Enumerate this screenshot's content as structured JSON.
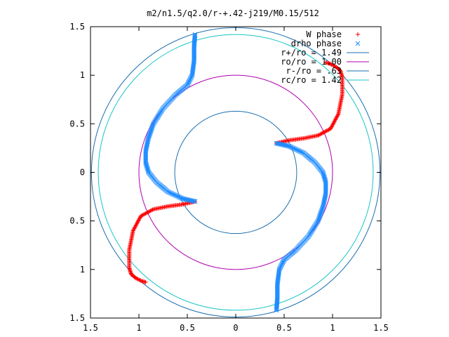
{
  "chart_data": {
    "type": "scatter",
    "title": "m2/n1.5/q2.0/r-+.42-j219/M0.15/512",
    "xlim": [
      -1.5,
      1.5
    ],
    "ylim": [
      -1.5,
      1.5
    ],
    "x_ticks": [
      -1.5,
      -1,
      -0.5,
      0,
      0.5,
      1,
      1.5
    ],
    "y_ticks": [
      -1.5,
      -1,
      -0.5,
      0,
      0.5,
      1,
      1.5
    ],
    "x_tick_labels": [
      "1.5",
      "1",
      "0.5",
      "0",
      "0.5",
      "1",
      "1.5"
    ],
    "y_tick_labels": [
      "1.5",
      "1",
      "0.5",
      "0",
      "0.5",
      "1",
      "1.5"
    ],
    "grid": false,
    "legend_position": "top-right",
    "circles": [
      {
        "label": "r+/ro = 1.49",
        "radius": 1.49,
        "color": "#1a6fb0"
      },
      {
        "label": "ro/ro = 1.00",
        "radius": 1.0,
        "color": "#b000b0"
      },
      {
        "label": "r-/ro = .63",
        "radius": 0.63,
        "color": "#1a6fb0"
      },
      {
        "label": "rc/ro = 1.42",
        "radius": 1.42,
        "color": "#19c6c6"
      }
    ],
    "series": [
      {
        "name": "W phase",
        "marker": "plus",
        "color": "#ff0000",
        "arms": [
          {
            "points": [
              [
                0.42,
                0.3
              ],
              [
                0.55,
                0.33
              ],
              [
                0.7,
                0.35
              ],
              [
                0.85,
                0.38
              ],
              [
                0.98,
                0.45
              ],
              [
                1.06,
                0.6
              ],
              [
                1.1,
                0.8
              ],
              [
                1.1,
                0.98
              ],
              [
                1.08,
                1.05
              ],
              [
                1.03,
                1.09
              ],
              [
                0.97,
                1.12
              ],
              [
                0.93,
                1.13
              ]
            ]
          },
          {
            "points": [
              [
                -0.42,
                -0.3
              ],
              [
                -0.55,
                -0.33
              ],
              [
                -0.7,
                -0.35
              ],
              [
                -0.85,
                -0.38
              ],
              [
                -0.98,
                -0.45
              ],
              [
                -1.06,
                -0.6
              ],
              [
                -1.1,
                -0.8
              ],
              [
                -1.1,
                -0.98
              ],
              [
                -1.08,
                -1.05
              ],
              [
                -1.03,
                -1.09
              ],
              [
                -0.97,
                -1.12
              ],
              [
                -0.93,
                -1.13
              ]
            ]
          }
        ]
      },
      {
        "name": "drho phase",
        "marker": "cross",
        "color": "#1e8cff",
        "arms": [
          {
            "points": [
              [
                0.42,
                0.3
              ],
              [
                0.55,
                0.27
              ],
              [
                0.7,
                0.2
              ],
              [
                0.82,
                0.1
              ],
              [
                0.9,
                0.0
              ],
              [
                0.93,
                -0.1
              ],
              [
                0.93,
                -0.22
              ],
              [
                0.9,
                -0.36
              ],
              [
                0.85,
                -0.5
              ],
              [
                0.75,
                -0.66
              ],
              [
                0.62,
                -0.8
              ],
              [
                0.5,
                -0.9
              ],
              [
                0.45,
                -1.0
              ],
              [
                0.43,
                -1.15
              ],
              [
                0.43,
                -1.3
              ],
              [
                0.42,
                -1.42
              ]
            ]
          },
          {
            "points": [
              [
                -0.42,
                -0.3
              ],
              [
                -0.55,
                -0.27
              ],
              [
                -0.7,
                -0.2
              ],
              [
                -0.82,
                -0.1
              ],
              [
                -0.9,
                0.0
              ],
              [
                -0.93,
                0.1
              ],
              [
                -0.93,
                0.22
              ],
              [
                -0.9,
                0.36
              ],
              [
                -0.85,
                0.5
              ],
              [
                -0.75,
                0.66
              ],
              [
                -0.62,
                0.8
              ],
              [
                -0.5,
                0.9
              ],
              [
                -0.45,
                1.0
              ],
              [
                -0.43,
                1.15
              ],
              [
                -0.43,
                1.3
              ],
              [
                -0.42,
                1.42
              ]
            ]
          }
        ]
      }
    ]
  }
}
